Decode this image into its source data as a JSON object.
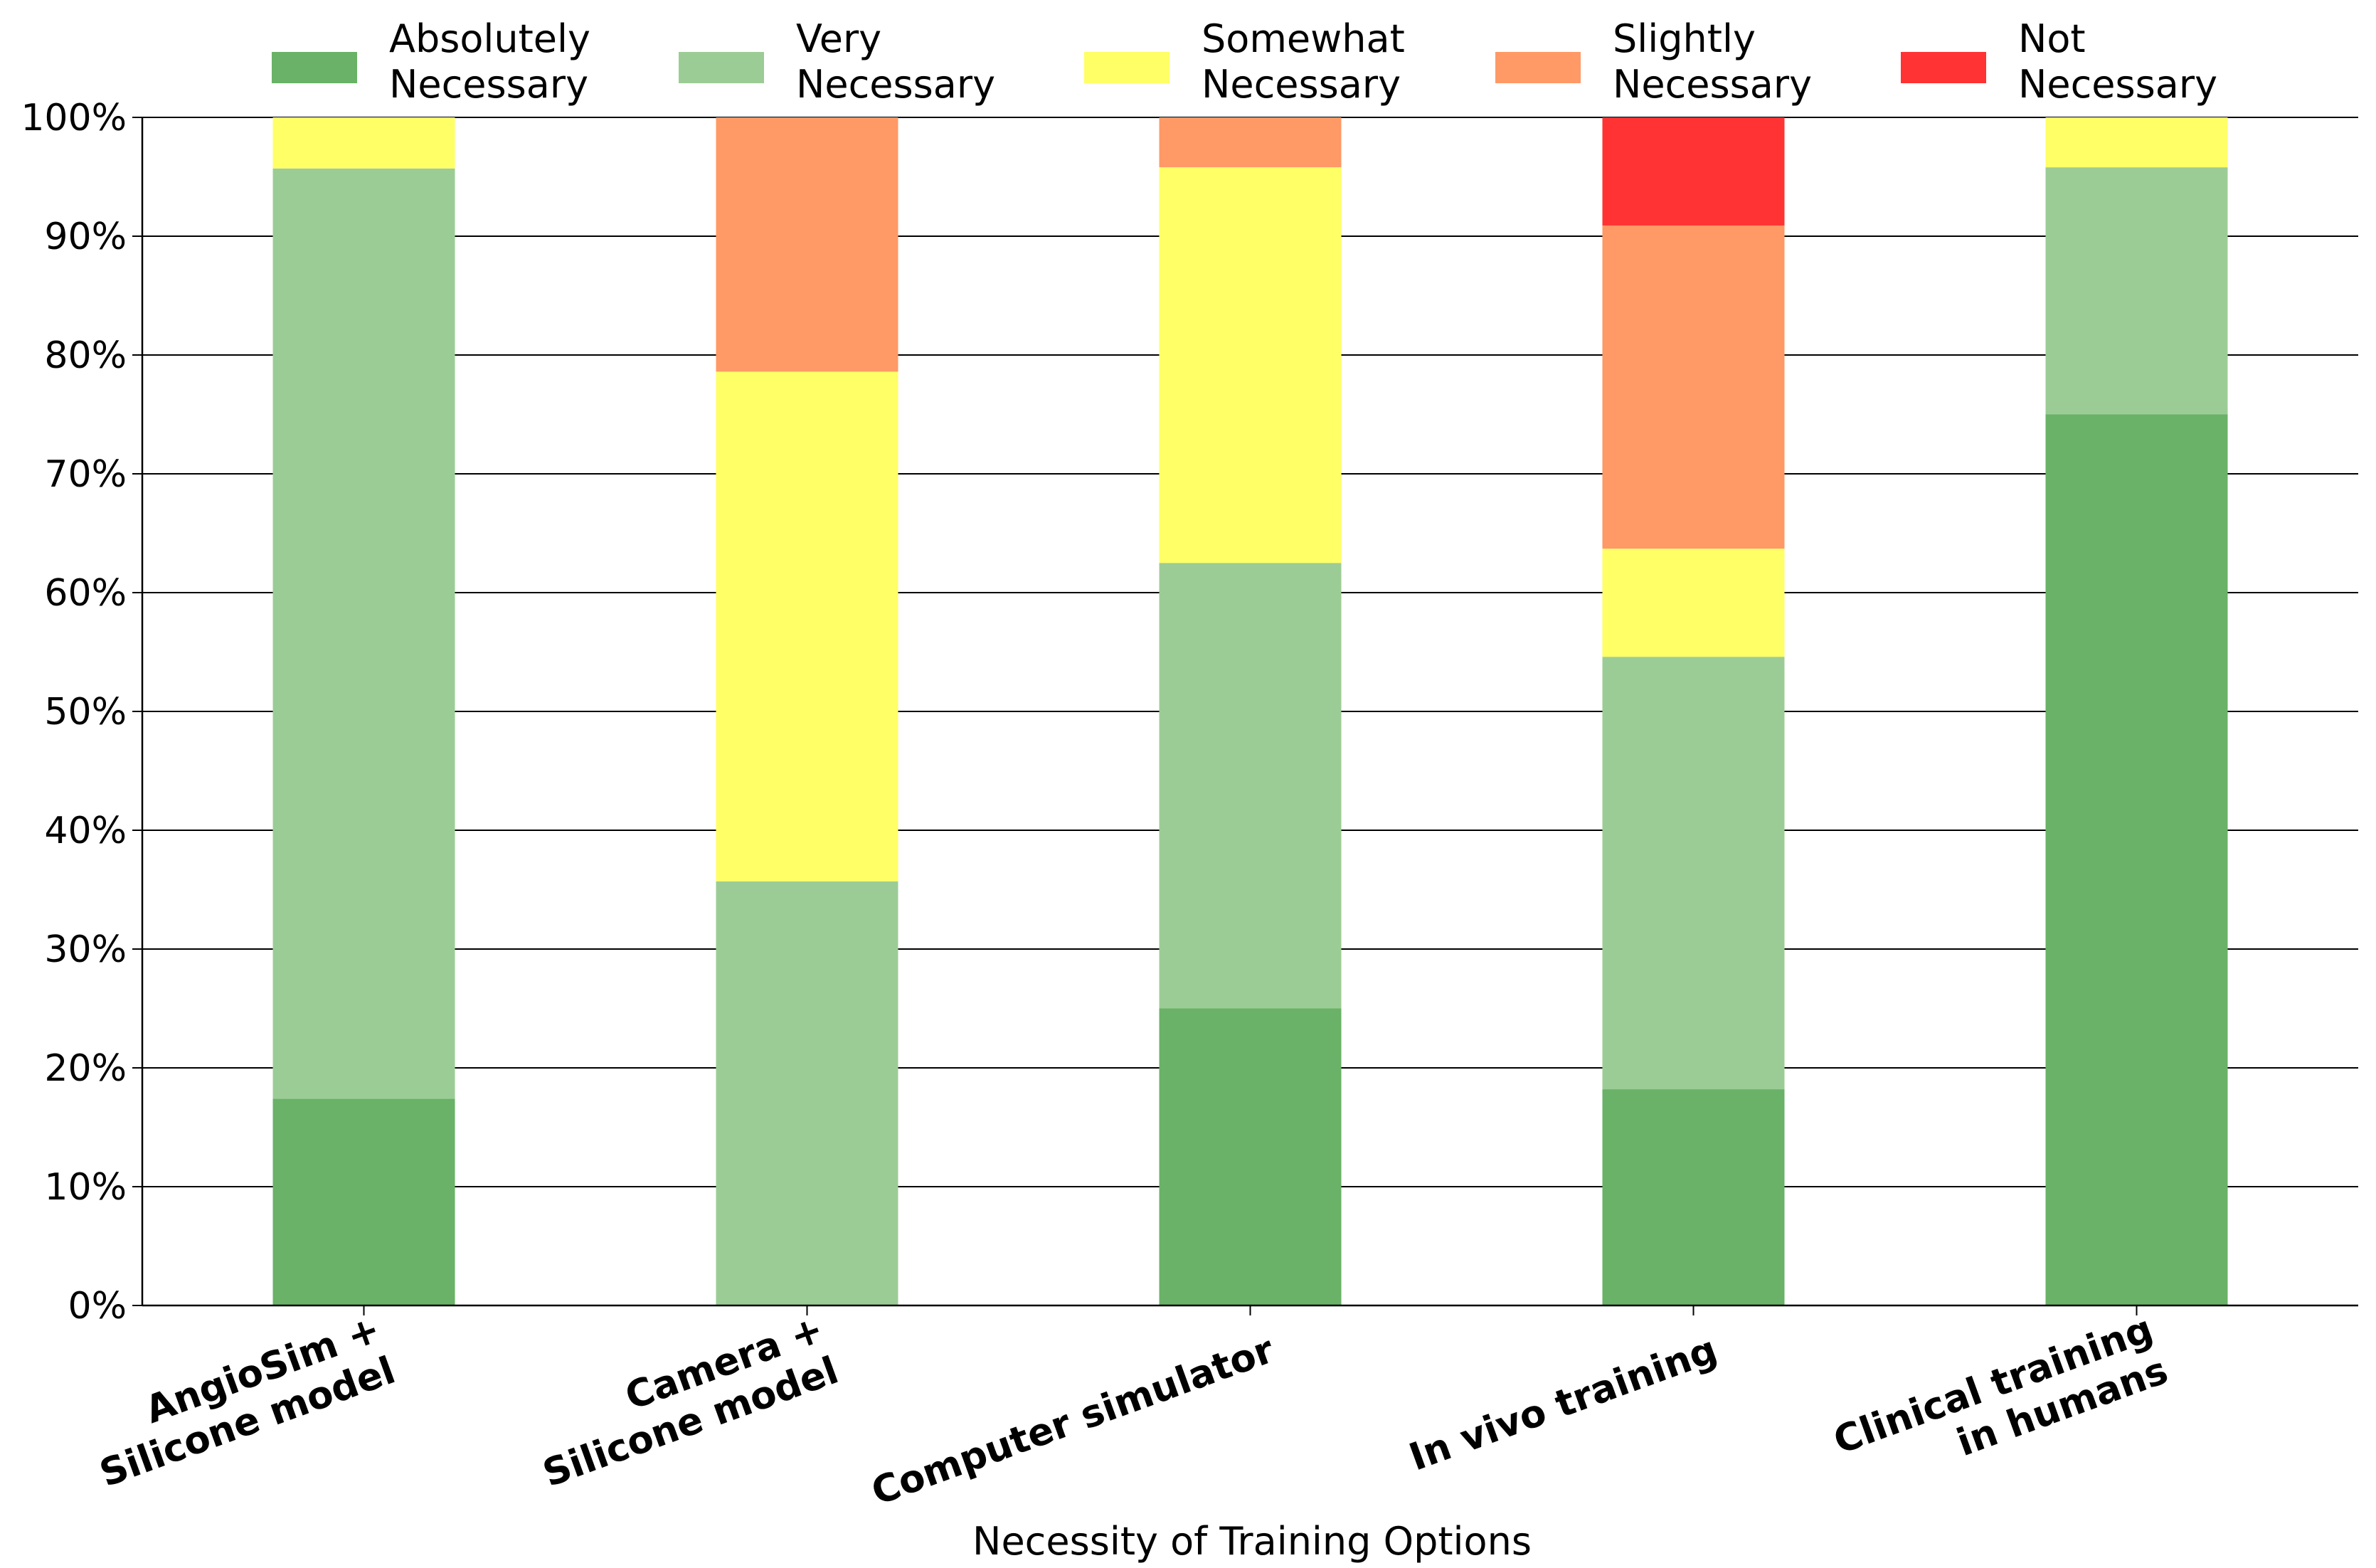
{
  "chart_data": {
    "type": "bar",
    "stacked": true,
    "title": "",
    "xlabel": "Necessity of Training Options",
    "ylabel": "",
    "ylim": [
      0,
      100
    ],
    "ytick_format": "percent",
    "yticks": [
      "0%",
      "10%",
      "20%",
      "30%",
      "40%",
      "50%",
      "60%",
      "70%",
      "80%",
      "90%",
      "100%"
    ],
    "grid": "horizontal",
    "legend_position": "top",
    "categories": [
      [
        "AngioSim +",
        "Silicone model"
      ],
      [
        "Camera +",
        "Silicone model"
      ],
      [
        "Computer simulator"
      ],
      [
        "In vivo training"
      ],
      [
        "Clinical training",
        "in humans"
      ]
    ],
    "series": [
      {
        "name": [
          "Absolutely",
          "Necessary"
        ],
        "color": "#69b267",
        "values": [
          17.4,
          0,
          25.0,
          18.2,
          75.0
        ]
      },
      {
        "name": [
          "Very",
          "Necessary"
        ],
        "color": "#9ccc96",
        "values": [
          78.3,
          35.7,
          37.5,
          36.4,
          20.8
        ]
      },
      {
        "name": [
          "Somewhat",
          "Necessary"
        ],
        "color": "#ffff66",
        "values": [
          4.3,
          42.9,
          33.3,
          9.1,
          4.2
        ]
      },
      {
        "name": [
          "Slightly",
          "Necessary"
        ],
        "color": "#ff9966",
        "values": [
          0,
          21.4,
          4.2,
          27.2,
          0
        ]
      },
      {
        "name": [
          "Not",
          "Necessary"
        ],
        "color": "#ff3333",
        "values": [
          0,
          0,
          0,
          9.1,
          0
        ]
      }
    ]
  }
}
